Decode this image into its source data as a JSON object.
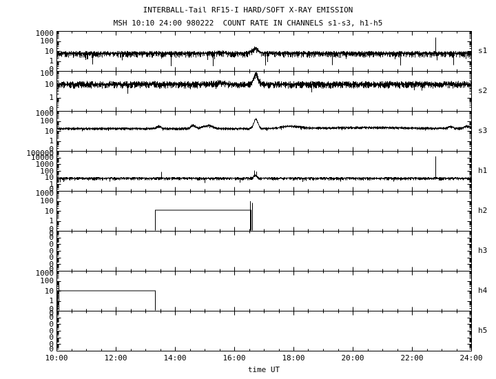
{
  "title": "INTERBALL-Tail RF15-I HARD/SOFT X-RAY EMISSION",
  "subtitle": "MSH 10:10 24:00 980222  COUNT RATE IN CHANNELS s1-s3, h1-h5",
  "chart_data": {
    "type": "line",
    "title": "INTERBALL-Tail RF15-I HARD/SOFT X-RAY EMISSION",
    "subtitle": "MSH 10:10 24:00 980222  COUNT RATE IN CHANNELS s1-s3, h1-h5",
    "xlabel": "time UT",
    "x_range_hours": [
      10,
      24
    ],
    "x_major_tick_labels": [
      "10:00",
      "12:00",
      "14:00",
      "16:00",
      "18:00",
      "20:00",
      "22:00",
      "24:00"
    ],
    "x_minor_step_hours": 0.5,
    "background": "#ffffff",
    "foreground": "#000000",
    "grid": false,
    "legend": "none",
    "panels": [
      {
        "id": "s1",
        "label": "s1",
        "scale": "log",
        "y_tick_labels": [
          "1000",
          "100",
          "10",
          "1",
          "0"
        ],
        "trace": {
          "style": "noise",
          "baseline": 6,
          "spread_up": 0.18,
          "spread_down": 0.42,
          "down_prob": 0.05,
          "extra_down": 0.55,
          "bumps": [
            {
              "t": 16.7,
              "sigma": 0.1,
              "dlog": 0.5
            },
            {
              "t": 15.5,
              "sigma": 0.15,
              "dlog": 0.1
            }
          ],
          "spikes": [
            {
              "t": 22.78,
              "value": 220
            }
          ],
          "down_spikes": [
            {
              "t": 11.2,
              "value": 0.45
            },
            {
              "t": 13.87,
              "value": 0.3
            },
            {
              "t": 15.28,
              "value": 0.3
            },
            {
              "t": 17.05,
              "value": 0.35
            },
            {
              "t": 19.3,
              "value": 0.4
            },
            {
              "t": 21.6,
              "value": 0.35
            },
            {
              "t": 23.4,
              "value": 0.4
            }
          ]
        }
      },
      {
        "id": "s2",
        "label": "s2",
        "scale": "log",
        "y_tick_labels": [
          "100",
          "10",
          "1",
          "0"
        ],
        "trace": {
          "style": "noise",
          "baseline": 10,
          "spread_up": 0.2,
          "spread_down": 0.28,
          "down_prob": 0.03,
          "extra_down": 0.3,
          "bumps": [
            {
              "t": 16.72,
              "sigma": 0.08,
              "dlog": 0.72
            },
            {
              "t": 15.5,
              "sigma": 0.15,
              "dlog": 0.1
            }
          ],
          "spikes": [],
          "down_spikes": [
            {
              "t": 12.4,
              "value": 2
            },
            {
              "t": 18.6,
              "value": 2.5
            }
          ]
        }
      },
      {
        "id": "s3",
        "label": "s3",
        "scale": "log",
        "y_tick_labels": [
          "1000",
          "100",
          "10",
          "1",
          "0"
        ],
        "trace": {
          "style": "noise",
          "baseline": 17,
          "spread_up": 0.1,
          "spread_down": 0.13,
          "down_prob": 0.01,
          "extra_down": 0.2,
          "bumps": [
            {
              "t": 13.45,
              "sigma": 0.07,
              "dlog": 0.22
            },
            {
              "t": 14.6,
              "sigma": 0.08,
              "dlog": 0.32
            },
            {
              "t": 15.1,
              "sigma": 0.16,
              "dlog": 0.3
            },
            {
              "t": 16.72,
              "sigma": 0.07,
              "dlog": 0.95
            },
            {
              "t": 17.9,
              "sigma": 0.3,
              "dlog": 0.22
            },
            {
              "t": 20.5,
              "sigma": 1.5,
              "dlog": 0.1
            },
            {
              "t": 23.3,
              "sigma": 0.07,
              "dlog": 0.18
            },
            {
              "t": 23.85,
              "sigma": 0.1,
              "dlog": 0.22
            }
          ],
          "spikes": [],
          "down_spikes": []
        }
      },
      {
        "id": "h1",
        "label": "h1",
        "scale": "log",
        "y_tick_labels": [
          "100000",
          "10000",
          "1000",
          "100",
          "10",
          "1",
          "0"
        ],
        "trace": {
          "style": "noise",
          "baseline": 8,
          "spread_up": 0.15,
          "spread_down": 0.3,
          "down_prob": 0.03,
          "extra_down": 0.4,
          "bumps": [
            {
              "t": 16.7,
              "sigma": 0.06,
              "dlog": 0.4
            }
          ],
          "spikes": [
            {
              "t": 13.53,
              "value": 70
            },
            {
              "t": 16.68,
              "value": 110
            },
            {
              "t": 16.74,
              "value": 80
            },
            {
              "t": 22.78,
              "value": 15000
            }
          ],
          "down_spikes": [
            {
              "t": 15.0,
              "value": 1.5
            }
          ]
        }
      },
      {
        "id": "h2",
        "label": "h2",
        "scale": "log",
        "y_tick_labels": [
          "1000",
          "100",
          "10",
          "1",
          "0"
        ],
        "trace": {
          "style": "step",
          "segments": [
            {
              "t0": 13.33,
              "t1": 16.56,
              "level": 12
            }
          ],
          "spikes": [
            {
              "t": 16.54,
              "value": 90
            },
            {
              "t": 16.61,
              "value": 60
            }
          ]
        }
      },
      {
        "id": "h3",
        "label": "h3",
        "scale": "linear-zero",
        "y_tick_labels": [
          "0",
          "0",
          "0",
          "0",
          "0",
          "0",
          "0"
        ],
        "trace": {
          "style": "none"
        }
      },
      {
        "id": "h4",
        "label": "h4",
        "scale": "log",
        "y_tick_labels": [
          "1000",
          "100",
          "10",
          "1",
          "0"
        ],
        "trace": {
          "style": "step",
          "segments": [
            {
              "t0": 10.0,
              "t1": 13.33,
              "level": 10
            }
          ],
          "spikes": [
            {
              "t": 10.08,
              "value": 95
            }
          ]
        }
      },
      {
        "id": "h5",
        "label": "h5",
        "scale": "linear-zero",
        "y_tick_labels": [
          "0",
          "0",
          "0",
          "0",
          "0",
          "0",
          "0"
        ],
        "trace": {
          "style": "none"
        }
      }
    ]
  }
}
